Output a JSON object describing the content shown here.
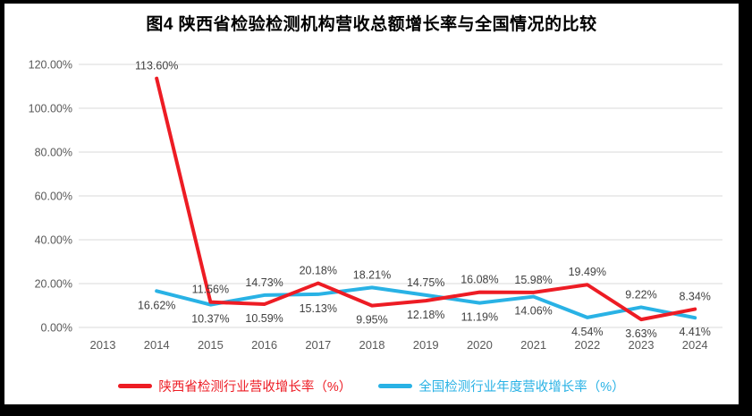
{
  "window": {
    "background": "#ffffff",
    "frame_color": "#000000"
  },
  "chart_data": {
    "type": "line",
    "title": "图4 陕西省检验检测机构营收总额增长率与全国情况的比较",
    "categories": [
      "2013",
      "2014",
      "2015",
      "2016",
      "2017",
      "2018",
      "2019",
      "2020",
      "2021",
      "2022",
      "2023",
      "2024"
    ],
    "series": [
      {
        "name": "陕西省检测行业营收增长率（%）",
        "color": "#ed1c24",
        "values": [
          null,
          113.6,
          11.56,
          10.59,
          20.18,
          9.95,
          12.18,
          16.08,
          15.98,
          19.49,
          3.63,
          8.34
        ],
        "label_positions": [
          null,
          "above",
          "above",
          "below",
          "above",
          "below",
          "below",
          "above",
          "above",
          "above",
          "below",
          "above"
        ]
      },
      {
        "name": "全国检测行业年度营收增长率（%）",
        "color": "#29b2e5",
        "values": [
          null,
          16.62,
          10.37,
          14.73,
          15.13,
          18.21,
          14.75,
          11.19,
          14.06,
          4.54,
          9.22,
          4.41
        ],
        "label_positions": [
          null,
          "below",
          "below",
          "above",
          "below",
          "above",
          "above",
          "below",
          "below",
          "below",
          "above",
          "below"
        ]
      }
    ],
    "y_ticks": [
      "120.00%",
      "100.00%",
      "80.00%",
      "60.00%",
      "40.00%",
      "20.00%",
      "0.00%"
    ],
    "ylim": [
      0,
      120
    ],
    "grid": true,
    "legend_position": "bottom",
    "colors": {
      "gridline": "#d9d9d9",
      "axis_text": "#595959",
      "data_label": "#404040",
      "title_text": "#000000"
    }
  }
}
